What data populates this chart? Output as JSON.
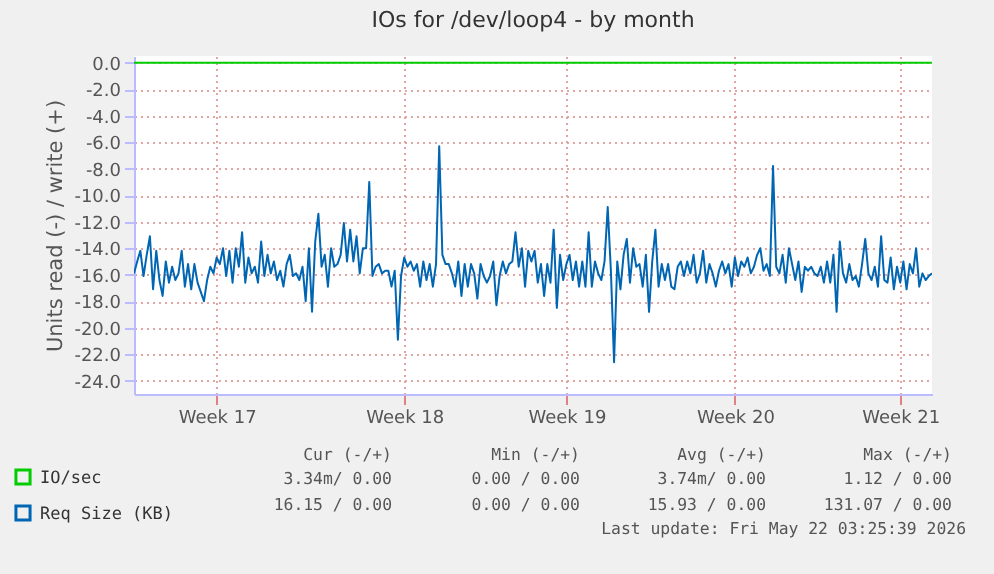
{
  "chart_data": {
    "type": "line",
    "title": "IOs for /dev/loop4 - by month",
    "ylabel": "Units read (-) / write (+)",
    "categories": [
      null,
      null,
      null,
      null,
      null,
      null,
      null,
      null,
      null,
      null,
      null,
      null,
      null,
      null,
      null,
      null,
      null,
      null,
      null,
      null,
      null,
      null,
      null,
      null,
      null,
      null,
      "Week 17",
      null,
      null,
      null,
      null,
      null,
      null,
      null,
      null,
      null,
      null,
      null,
      null,
      null,
      null,
      null,
      null,
      null,
      null,
      null,
      null,
      null,
      null,
      null,
      null,
      null,
      null,
      null,
      null,
      null,
      null,
      null,
      null,
      null,
      null,
      null,
      null,
      null,
      null,
      null,
      null,
      null,
      null,
      null,
      null,
      null,
      null,
      null,
      null,
      null,
      null,
      null,
      null,
      null,
      null,
      null,
      null,
      null,
      null,
      "Week 18",
      null,
      null,
      null,
      null,
      null,
      null,
      null,
      null,
      null,
      null,
      null,
      null,
      null,
      null,
      null,
      null,
      null,
      null,
      null,
      null,
      null,
      null,
      null,
      null,
      null,
      null,
      null,
      null,
      null,
      null,
      null,
      null,
      null,
      null,
      null,
      null,
      null,
      null,
      null,
      null,
      null,
      null,
      null,
      null,
      null,
      null,
      null,
      null,
      null,
      null,
      "Week 19",
      null,
      null,
      null,
      null,
      null,
      null,
      null,
      null,
      null,
      null,
      null,
      null,
      null,
      null,
      null,
      null,
      null,
      null,
      null,
      null,
      null,
      null,
      null,
      null,
      null,
      null,
      null,
      null,
      null,
      null,
      null,
      null,
      null,
      null,
      null,
      null,
      null,
      null,
      null,
      null,
      null,
      null,
      null,
      null,
      null,
      null,
      null,
      null,
      null,
      null,
      null,
      null,
      "Week 20",
      null,
      null,
      null,
      null,
      null,
      null,
      null,
      null,
      null,
      null,
      null,
      null,
      null,
      null,
      null,
      null,
      null,
      null,
      null,
      null,
      null,
      null,
      null,
      null,
      null,
      null,
      null,
      null,
      null,
      null,
      null,
      null,
      null,
      null,
      null,
      null,
      null,
      null,
      null,
      null,
      null,
      null,
      null,
      null,
      null,
      null,
      null,
      null,
      null,
      null,
      null,
      "Week 21",
      null,
      null,
      null,
      null,
      null,
      null,
      null,
      null,
      null,
      null
    ],
    "ylim": [
      -25,
      0.5
    ],
    "yticks": [
      {
        "value": 0,
        "label": "0.0"
      },
      {
        "value": -2,
        "label": "-2.0"
      },
      {
        "value": -4,
        "label": "-4.0"
      },
      {
        "value": -6,
        "label": "-6.0"
      },
      {
        "value": -8,
        "label": "-8.0"
      },
      {
        "value": -10,
        "label": "-10.0"
      },
      {
        "value": -12,
        "label": "-12.0"
      },
      {
        "value": -14,
        "label": "-14.0"
      },
      {
        "value": -16,
        "label": "-16.0"
      },
      {
        "value": -18,
        "label": "-18.0"
      },
      {
        "value": -20,
        "label": "-20.0"
      },
      {
        "value": -22,
        "label": "-22.0"
      },
      {
        "value": -24,
        "label": "-24.0"
      }
    ],
    "grid": true,
    "legend": "bottom left",
    "series": [
      {
        "name": "IO/sec",
        "color": "#00cc00",
        "values": [
          0,
          0,
          0,
          0,
          0,
          0,
          0,
          0,
          0,
          0,
          0,
          0,
          0,
          0,
          0,
          0,
          0,
          0,
          0,
          0,
          0,
          0,
          0,
          0,
          0,
          0,
          0,
          0,
          0,
          0,
          0,
          0,
          0,
          0,
          0,
          0,
          0,
          0,
          0,
          0,
          0,
          0,
          0,
          0,
          0,
          0,
          0,
          0,
          0,
          0,
          0,
          0,
          0,
          0,
          0,
          0,
          0,
          0,
          0,
          0,
          0,
          0,
          0,
          0,
          0,
          0,
          0,
          0,
          0,
          0,
          0,
          0,
          0,
          0,
          0,
          0,
          0,
          0,
          0,
          0,
          0,
          0,
          0,
          0,
          0,
          0,
          0,
          0,
          0,
          0,
          0,
          0,
          0,
          0,
          0,
          0,
          0,
          0,
          0,
          0,
          0,
          0,
          0,
          0,
          0,
          0,
          0,
          0,
          0,
          0,
          0,
          0,
          0,
          0,
          0,
          0,
          0,
          0,
          0,
          0,
          0,
          0,
          0,
          0,
          0,
          0,
          0,
          0,
          0,
          0,
          0,
          0,
          0,
          0,
          0,
          0,
          0,
          0,
          0,
          0,
          0,
          0,
          0,
          0,
          0,
          0,
          0,
          0,
          0,
          0,
          0,
          0,
          0,
          0,
          0,
          0,
          0,
          0,
          0,
          0,
          0,
          0,
          0,
          0,
          0,
          0,
          0,
          0,
          0,
          0,
          0,
          0,
          0,
          0,
          0,
          0,
          0,
          0,
          0,
          0,
          0,
          0,
          0,
          0,
          0,
          0,
          0,
          0,
          0,
          0,
          0,
          0,
          0,
          0,
          0,
          0,
          0,
          0,
          0,
          0,
          0,
          0,
          0,
          0,
          0,
          0,
          0,
          0,
          0,
          0,
          0,
          0,
          0,
          0,
          0,
          0,
          0,
          0,
          0,
          0,
          0,
          0,
          0,
          0,
          0,
          0,
          0,
          0,
          0,
          0,
          0,
          0,
          0,
          0,
          0,
          0,
          0,
          0,
          0,
          0,
          0,
          0,
          0,
          0,
          0,
          0,
          0,
          0,
          0,
          0,
          0,
          0
        ]
      },
      {
        "name": "Req Size (KB)",
        "color": "#0066b3",
        "values": [
          -15.9,
          -15.0,
          -14.2,
          -16.1,
          -14.5,
          -13.1,
          -17.1,
          -14.2,
          -16.4,
          -17.6,
          -15.0,
          -16.6,
          -15.4,
          -16.4,
          -15.9,
          -14.2,
          -16.9,
          -15.2,
          -17.1,
          -15.2,
          -16.6,
          -17.3,
          -18.0,
          -16.4,
          -15.4,
          -15.9,
          -14.7,
          -15.2,
          -14.0,
          -16.1,
          -14.2,
          -16.6,
          -14.0,
          -15.4,
          -12.8,
          -16.6,
          -14.7,
          -15.9,
          -15.4,
          -16.6,
          -13.5,
          -16.1,
          -14.5,
          -15.9,
          -15.0,
          -16.4,
          -15.7,
          -16.9,
          -15.2,
          -14.5,
          -16.1,
          -15.9,
          -16.4,
          -15.4,
          -18.0,
          -14.0,
          -18.8,
          -13.5,
          -11.4,
          -15.4,
          -14.5,
          -16.9,
          -14.0,
          -15.4,
          -15.2,
          -14.5,
          -12.1,
          -15.0,
          -12.6,
          -15.0,
          -13.1,
          -15.9,
          -14.0,
          -14.0,
          -9.0,
          -16.1,
          -15.4,
          -15.2,
          -15.9,
          -15.7,
          -15.7,
          -16.9,
          -15.7,
          -20.9,
          -16.1,
          -14.7,
          -15.4,
          -15.0,
          -15.7,
          -15.2,
          -16.9,
          -15.0,
          -16.4,
          -15.2,
          -16.9,
          -15.2,
          -6.3,
          -14.5,
          -15.2,
          -15.2,
          -15.9,
          -16.9,
          -15.0,
          -17.6,
          -15.2,
          -16.9,
          -15.2,
          -15.9,
          -17.8,
          -15.2,
          -16.1,
          -16.6,
          -16.1,
          -15.0,
          -18.3,
          -16.1,
          -15.0,
          -15.9,
          -15.2,
          -15.0,
          -12.8,
          -15.4,
          -14.0,
          -16.9,
          -14.2,
          -15.0,
          -14.2,
          -16.6,
          -15.2,
          -17.6,
          -15.2,
          -16.6,
          -12.6,
          -18.5,
          -14.5,
          -16.4,
          -15.2,
          -14.5,
          -16.4,
          -15.0,
          -16.9,
          -15.0,
          -16.9,
          -12.8,
          -16.9,
          -15.0,
          -15.9,
          -16.4,
          -15.0,
          -10.9,
          -15.7,
          -22.6,
          -15.0,
          -17.1,
          -14.5,
          -13.3,
          -16.6,
          -14.0,
          -15.4,
          -15.2,
          -16.9,
          -14.5,
          -18.8,
          -15.0,
          -12.6,
          -16.9,
          -15.2,
          -16.4,
          -15.2,
          -16.9,
          -17.1,
          -15.4,
          -15.0,
          -16.1,
          -15.0,
          -15.9,
          -14.5,
          -16.6,
          -15.9,
          -14.2,
          -16.6,
          -15.2,
          -15.9,
          -16.9,
          -15.7,
          -15.0,
          -15.9,
          -15.2,
          -16.9,
          -14.7,
          -16.1,
          -15.0,
          -15.4,
          -14.7,
          -15.9,
          -15.4,
          -14.5,
          -14.0,
          -15.7,
          -15.2,
          -16.1,
          -7.8,
          -15.4,
          -15.9,
          -14.5,
          -16.6,
          -14.0,
          -15.2,
          -16.4,
          -15.0,
          -17.3,
          -15.4,
          -15.7,
          -15.4,
          -15.9,
          -16.1,
          -15.4,
          -16.6,
          -15.0,
          -16.6,
          -14.5,
          -18.8,
          -13.5,
          -15.9,
          -16.6,
          -15.2,
          -16.4,
          -16.1,
          -16.9,
          -15.2,
          -13.3,
          -15.9,
          -16.4,
          -15.4,
          -16.9,
          -13.1,
          -16.4,
          -16.6,
          -14.7,
          -17.1,
          -15.4,
          -16.6,
          -15.0,
          -17.1,
          -15.2,
          -15.9,
          -14.0,
          -16.9,
          -15.9,
          -16.4,
          -16.1,
          -15.9
        ]
      }
    ],
    "annotations": [
      "Cur (-/+)",
      "Min (-/+)",
      "Avg (-/+)",
      "Max (-/+)",
      "3.34m/ 0.00",
      "0.00 / 0.00",
      "3.74m/ 0.00",
      "1.12 / 0.00",
      "16.15 / 0.00",
      "0.00 / 0.00",
      "15.93 / 0.00",
      "131.07 / 0.00",
      "Last update: Fri May 22 03:25:39 2026"
    ]
  }
}
